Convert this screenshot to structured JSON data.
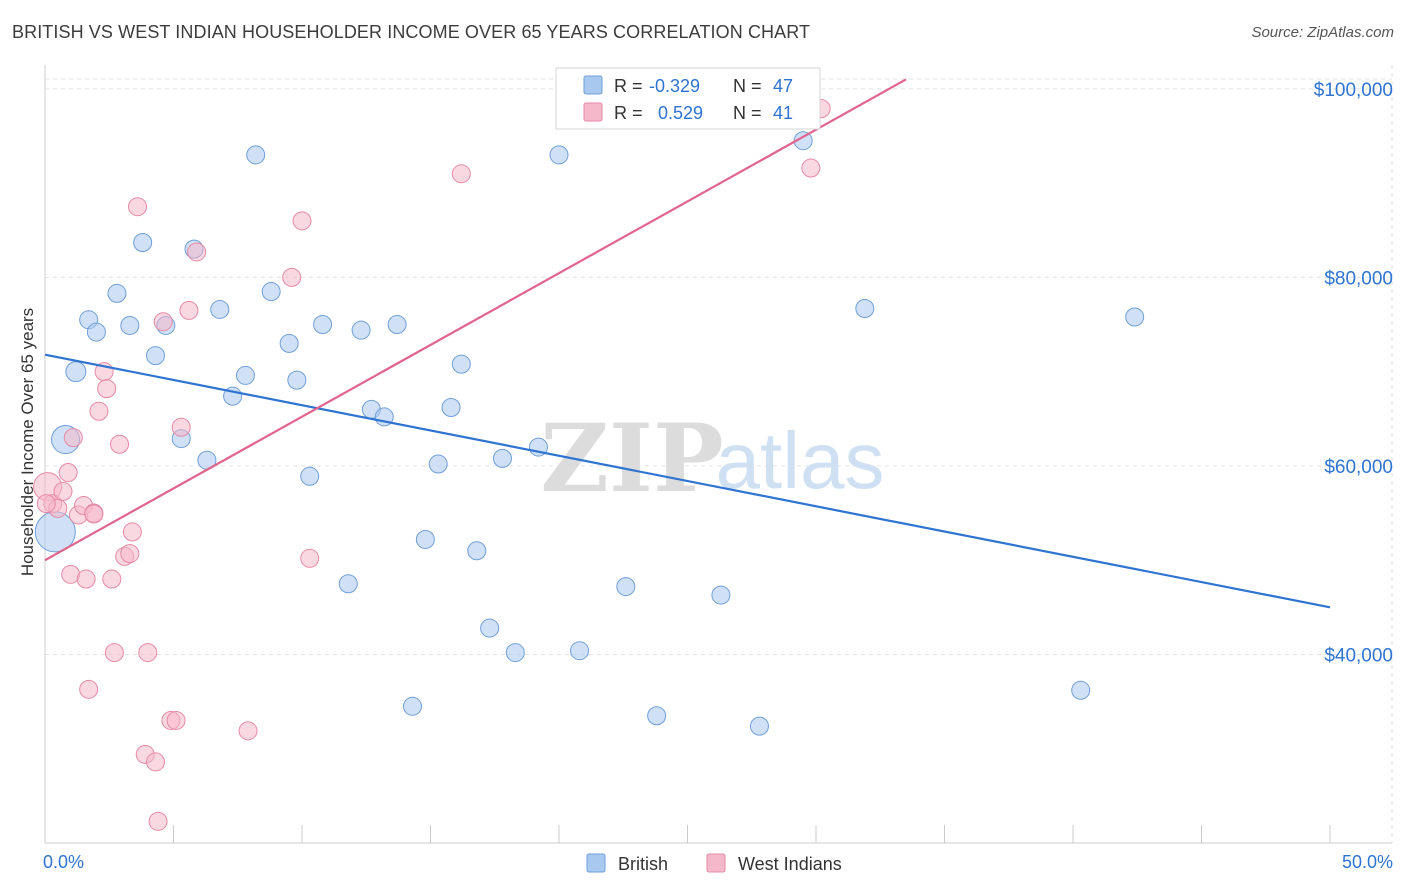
{
  "header": {
    "title": "BRITISH VS WEST INDIAN HOUSEHOLDER INCOME OVER 65 YEARS CORRELATION CHART",
    "source": "Source: ZipAtlas.com"
  },
  "watermark": {
    "zip": "ZIP",
    "atlas": "atlas"
  },
  "legend_top": [
    {
      "r_label": "R =",
      "r_value": "-0.329",
      "n_label": "N =",
      "n_value": "47",
      "color": "#a9c8f0"
    },
    {
      "r_label": "R =",
      "r_value": "0.529",
      "n_label": "N =",
      "n_value": "41",
      "color": "#f5b8cb"
    }
  ],
  "legend_bottom": [
    {
      "name": "British",
      "color": "#a9c8f0"
    },
    {
      "name": "West Indians",
      "color": "#f5b8cb"
    }
  ],
  "chart_data": {
    "type": "scatter",
    "title": "BRITISH VS WEST INDIAN HOUSEHOLDER INCOME OVER 65 YEARS CORRELATION CHART",
    "xlabel": "",
    "ylabel": "Householder Income Over 65 years",
    "xlim": [
      0,
      50
    ],
    "ylim": [
      20000,
      102000
    ],
    "x_tick_labels": [
      "0.0%",
      "50.0%"
    ],
    "y_ticks": [
      40000,
      60000,
      80000,
      100000
    ],
    "y_tick_labels": [
      "$40,000",
      "$60,000",
      "$80,000",
      "$100,000"
    ],
    "grid": true,
    "legend_placement": "top-center and bottom-center",
    "series": [
      {
        "name": "British",
        "color": "#a9c8f0",
        "stroke": "#6f9fd8",
        "line_color": "#2e74d0",
        "trend": [
          [
            0,
            71800
          ],
          [
            50,
            45000
          ]
        ],
        "points": [
          [
            0.4,
            53000,
            20
          ],
          [
            0.8,
            62800,
            14
          ],
          [
            1.2,
            70000,
            10
          ],
          [
            1.7,
            75500,
            9
          ],
          [
            2.0,
            74200,
            9
          ],
          [
            2.8,
            78300,
            9
          ],
          [
            3.3,
            74900,
            9
          ],
          [
            3.8,
            83700,
            9
          ],
          [
            4.3,
            71700,
            9
          ],
          [
            4.7,
            74900,
            9
          ],
          [
            5.3,
            62900,
            9
          ],
          [
            5.8,
            83000,
            9
          ],
          [
            6.3,
            60600,
            9
          ],
          [
            6.8,
            76600,
            9
          ],
          [
            7.3,
            67400,
            9
          ],
          [
            7.8,
            69600,
            9
          ],
          [
            8.2,
            93000,
            9
          ],
          [
            8.8,
            78500,
            9
          ],
          [
            9.5,
            73000,
            9
          ],
          [
            9.8,
            69100,
            9
          ],
          [
            10.3,
            58900,
            9
          ],
          [
            10.8,
            75000,
            9
          ],
          [
            11.8,
            47500,
            9
          ],
          [
            12.3,
            74400,
            9
          ],
          [
            12.7,
            66000,
            9
          ],
          [
            13.2,
            65200,
            9
          ],
          [
            13.7,
            75000,
            9
          ],
          [
            14.3,
            34500,
            9
          ],
          [
            14.8,
            52200,
            9
          ],
          [
            15.3,
            60200,
            9
          ],
          [
            15.8,
            66200,
            9
          ],
          [
            16.2,
            70800,
            9
          ],
          [
            16.8,
            51000,
            9
          ],
          [
            17.3,
            42800,
            9
          ],
          [
            17.8,
            60800,
            9
          ],
          [
            18.3,
            40200,
            9
          ],
          [
            19.2,
            62000,
            9
          ],
          [
            20.0,
            93000,
            9
          ],
          [
            20.8,
            40400,
            9
          ],
          [
            22.6,
            47200,
            9
          ],
          [
            23.8,
            33500,
            9
          ],
          [
            26.3,
            46300,
            9
          ],
          [
            27.8,
            32400,
            9
          ],
          [
            29.5,
            94500,
            9
          ],
          [
            31.9,
            76700,
            9
          ],
          [
            40.3,
            36200,
            9
          ],
          [
            42.4,
            75800,
            9
          ]
        ]
      },
      {
        "name": "West Indians",
        "color": "#f5b8cb",
        "stroke": "#e58aa6",
        "line_color": "#e0648c",
        "trend": [
          [
            0,
            50000
          ],
          [
            33.5,
            101000
          ]
        ],
        "points": [
          [
            0.1,
            57800,
            14
          ],
          [
            0.3,
            56000,
            9
          ],
          [
            0.5,
            55500,
            9
          ],
          [
            0.7,
            57300,
            9
          ],
          [
            0.9,
            59300,
            9
          ],
          [
            1.0,
            48500,
            9
          ],
          [
            1.1,
            63000,
            9
          ],
          [
            1.3,
            54800,
            9
          ],
          [
            1.5,
            55800,
            9
          ],
          [
            1.6,
            48000,
            9
          ],
          [
            1.7,
            36300,
            9
          ],
          [
            1.9,
            55000,
            9
          ],
          [
            2.1,
            65800,
            9
          ],
          [
            2.3,
            70000,
            9
          ],
          [
            2.4,
            68200,
            9
          ],
          [
            2.6,
            48000,
            9
          ],
          [
            2.7,
            40200,
            9
          ],
          [
            2.9,
            62300,
            9
          ],
          [
            3.1,
            50400,
            9
          ],
          [
            3.3,
            50700,
            9
          ],
          [
            3.4,
            53000,
            9
          ],
          [
            3.6,
            87500,
            9
          ],
          [
            3.9,
            29400,
            9
          ],
          [
            4.0,
            40200,
            9
          ],
          [
            4.3,
            28600,
            9
          ],
          [
            4.4,
            22300,
            9
          ],
          [
            4.6,
            75300,
            9
          ],
          [
            4.9,
            33000,
            9
          ],
          [
            5.1,
            33000,
            9
          ],
          [
            5.3,
            64100,
            9
          ],
          [
            5.6,
            76500,
            9
          ],
          [
            5.9,
            82700,
            9
          ],
          [
            7.9,
            31900,
            9
          ],
          [
            9.6,
            80000,
            9
          ],
          [
            10.0,
            86000,
            9
          ],
          [
            10.3,
            50200,
            9
          ],
          [
            16.2,
            91000,
            9
          ],
          [
            29.8,
            91600,
            9
          ],
          [
            30.2,
            97900,
            9
          ],
          [
            0.05,
            56000,
            9
          ],
          [
            1.9,
            54900,
            9
          ]
        ]
      }
    ]
  }
}
